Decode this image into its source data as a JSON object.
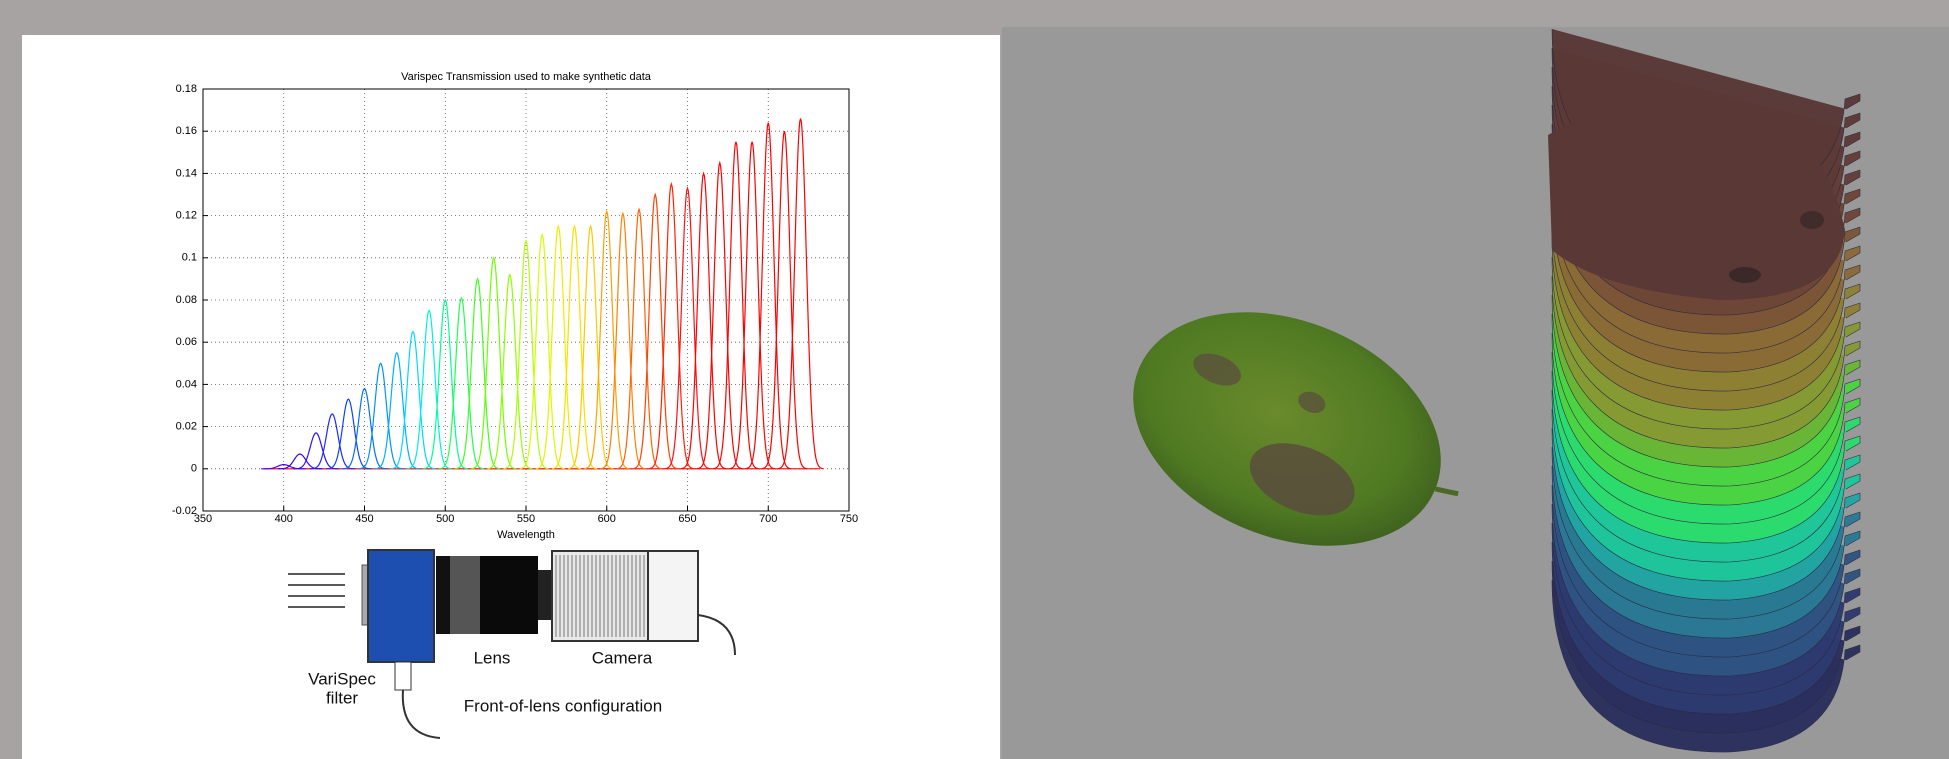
{
  "chart_data": {
    "type": "peaks",
    "title": "Varispec Transmission used to make synthetic data",
    "x_label": "Wavelength",
    "x": [
      400,
      410,
      420,
      430,
      440,
      450,
      460,
      470,
      480,
      490,
      500,
      510,
      520,
      530,
      540,
      550,
      560,
      570,
      580,
      590,
      600,
      610,
      620,
      630,
      640,
      650,
      660,
      670,
      680,
      690,
      700,
      710,
      720
    ],
    "values": [
      0.002,
      0.007,
      0.017,
      0.026,
      0.033,
      0.038,
      0.05,
      0.055,
      0.065,
      0.075,
      0.08,
      0.081,
      0.09,
      0.1,
      0.092,
      0.108,
      0.111,
      0.115,
      0.115,
      0.115,
      0.122,
      0.121,
      0.123,
      0.13,
      0.135,
      0.133,
      0.14,
      0.145,
      0.155,
      0.155,
      0.164,
      0.16,
      0.166
    ],
    "colors": [
      "#4b00ff",
      "#3a00ff",
      "#2a10ff",
      "#1e28ff",
      "#1040ff",
      "#0070ff",
      "#0090ff",
      "#00b0ff",
      "#00d8ff",
      "#00f0e0",
      "#00ff90",
      "#20ff50",
      "#40ff20",
      "#70ff00",
      "#90ff00",
      "#b0ff00",
      "#d0ff00",
      "#e8f000",
      "#f8e000",
      "#ffc800",
      "#ffa000",
      "#ff8000",
      "#ff6000",
      "#ff4000",
      "#ff2000",
      "#ff1010",
      "#ff0000",
      "#ff0000",
      "#ff0000",
      "#ff0000",
      "#ff0000",
      "#ff0000",
      "#ff0000"
    ],
    "xlim": [
      350,
      750
    ],
    "ylim": [
      -0.02,
      0.18
    ],
    "xticks": [
      350,
      400,
      450,
      500,
      550,
      600,
      650,
      700,
      750
    ],
    "yticks": [
      -0.02,
      0,
      0.02,
      0.04,
      0.06,
      0.08,
      0.1,
      0.12,
      0.14,
      0.16,
      0.18
    ],
    "grid": true
  },
  "diagram": {
    "lens": "Lens",
    "camera": "Camera",
    "filter_line1": "VariSpec",
    "filter_line2": "filter",
    "caption": "Front-of-lens configuration"
  }
}
